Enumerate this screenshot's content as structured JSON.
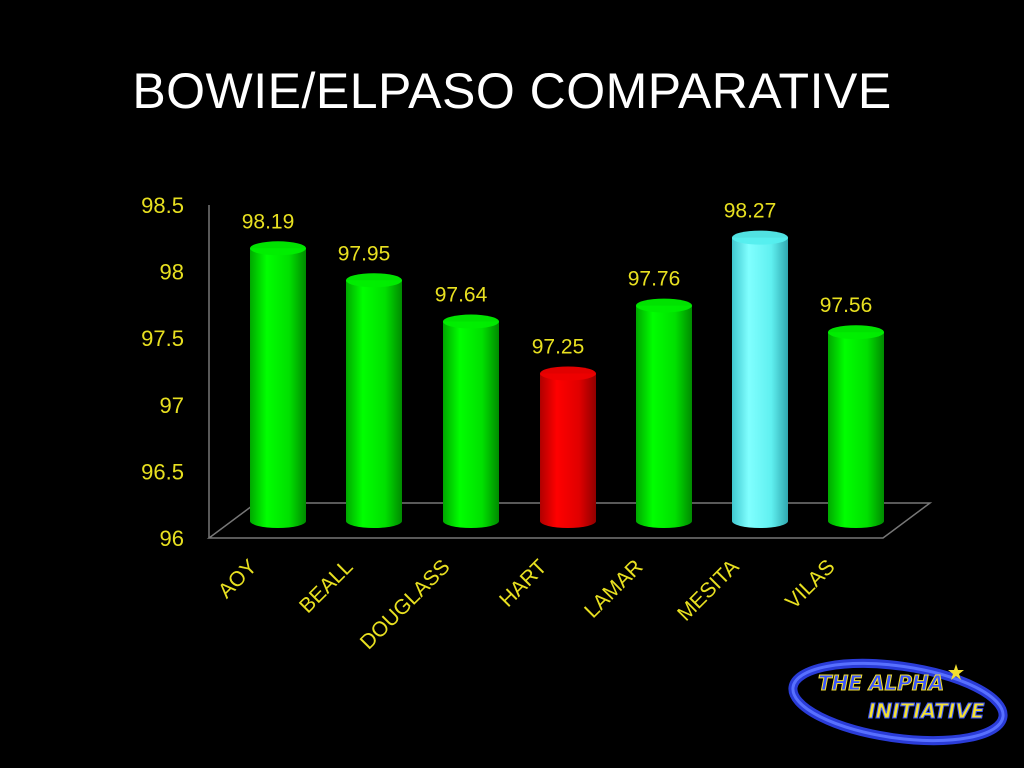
{
  "slide": {
    "title": "BOWIE/ELPASO COMPARATIVE"
  },
  "chart_data": {
    "type": "bar",
    "title": "",
    "categories": [
      "AOY",
      "BEALL",
      "DOUGLASS",
      "HART",
      "LAMAR",
      "MESITA",
      "VILAS"
    ],
    "series": [
      {
        "values": [
          98.19,
          97.95,
          97.64,
          97.25,
          97.76,
          98.27,
          97.56
        ]
      }
    ],
    "value_labels": [
      "98.19",
      "97.95",
      "97.64",
      "97.25",
      "97.76",
      "98.27",
      "97.56"
    ],
    "bar_colors": [
      "#00ee00",
      "#00ee00",
      "#00ee00",
      "#ee0000",
      "#00ee00",
      "#55eeee",
      "#00ee00"
    ],
    "yticks": [
      "96",
      "96.5",
      "97",
      "97.5",
      "98",
      "98.5"
    ],
    "ylim": [
      96,
      98.5
    ],
    "xlabel": "",
    "ylabel": "",
    "grid": false,
    "legend": "none",
    "text_color": "#e8e020"
  },
  "logo": {
    "line1": "THE ALPHA",
    "line2": "INITIATIVE"
  },
  "colors": {
    "background": "#000000",
    "title": "#ffffff",
    "axis": "#e8e020"
  }
}
